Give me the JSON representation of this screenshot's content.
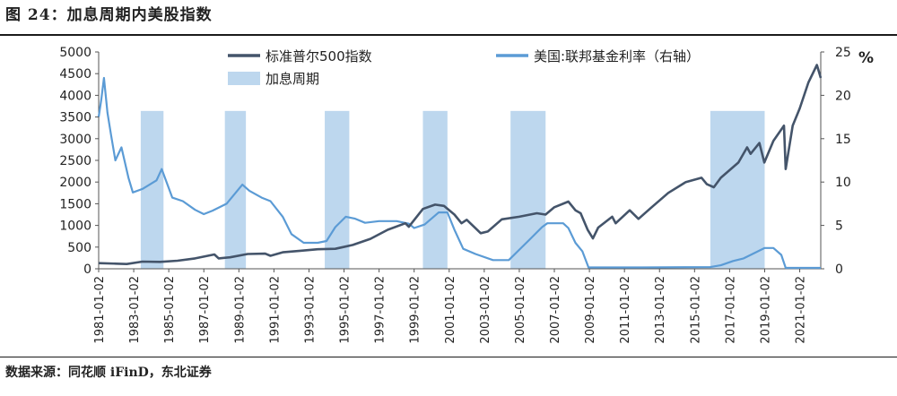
{
  "figure_title": "图 24：加息周期内美股指数",
  "source_note": "数据来源：同花顺 iFinD，东北证券",
  "colors": {
    "sp500": "#44546a",
    "fedfunds": "#5b9bd5",
    "hiking": "#bdd7ee"
  },
  "chart_data": {
    "type": "line",
    "x_tick_labels": [
      "1981-01-02",
      "1983-01-02",
      "1985-01-02",
      "1987-01-02",
      "1989-01-02",
      "1991-01-02",
      "1993-01-02",
      "1995-01-02",
      "1997-01-02",
      "1999-01-02",
      "2001-01-02",
      "2003-01-02",
      "2005-01-02",
      "2007-01-02",
      "2009-01-02",
      "2011-01-02",
      "2013-01-02",
      "2015-01-02",
      "2017-01-02",
      "2019-01-02",
      "2021-01-02"
    ],
    "x_range": [
      1981.0,
      2022.2
    ],
    "y_left": {
      "range": [
        0,
        5000
      ],
      "ticks": [
        "0",
        "500",
        "1000",
        "1500",
        "2000",
        "2500",
        "3000",
        "3500",
        "4000",
        "4500",
        "5000"
      ]
    },
    "y_right": {
      "range": [
        0,
        25
      ],
      "ticks": [
        "0",
        "5",
        "10",
        "15",
        "20",
        "25"
      ],
      "unit": "%"
    },
    "legend": {
      "sp500": "标准普尔500指数",
      "fedfunds": "美国:联邦基金利率（右轴）",
      "hiking": "加息周期"
    },
    "hiking_periods": [
      [
        1983.4,
        1984.7
      ],
      [
        1988.2,
        1989.4
      ],
      [
        1993.9,
        1995.3
      ],
      [
        1999.5,
        2000.9
      ],
      [
        2004.5,
        2006.5
      ],
      [
        2015.9,
        2019.0
      ]
    ],
    "sp500": {
      "x": [
        1981.0,
        1982.0,
        1982.6,
        1983.5,
        1984.5,
        1985.5,
        1986.5,
        1987.6,
        1987.85,
        1988.5,
        1989.5,
        1990.5,
        1990.8,
        1991.5,
        1992.5,
        1993.5,
        1994.5,
        1995.5,
        1996.5,
        1997.5,
        1998.5,
        1998.7,
        1999.5,
        2000.2,
        2000.7,
        2001.3,
        2001.7,
        2002.0,
        2002.8,
        2003.2,
        2004.0,
        2005.0,
        2006.0,
        2006.5,
        2007.0,
        2007.8,
        2008.2,
        2008.5,
        2008.9,
        2009.2,
        2009.5,
        2010.3,
        2010.5,
        2011.3,
        2011.8,
        2012.5,
        2013.5,
        2014.5,
        2015.4,
        2015.7,
        2016.1,
        2016.5,
        2017.5,
        2018.0,
        2018.2,
        2018.7,
        2018.98,
        2019.5,
        2020.1,
        2020.2,
        2020.6,
        2021.0,
        2021.5,
        2021.98,
        2022.2
      ],
      "y": [
        130,
        118,
        110,
        165,
        160,
        185,
        240,
        330,
        240,
        265,
        340,
        350,
        300,
        380,
        415,
        450,
        460,
        550,
        690,
        900,
        1050,
        970,
        1380,
        1480,
        1450,
        1250,
        1050,
        1130,
        820,
        860,
        1140,
        1200,
        1280,
        1250,
        1420,
        1550,
        1350,
        1280,
        900,
        700,
        950,
        1200,
        1050,
        1350,
        1150,
        1400,
        1750,
        2000,
        2100,
        1950,
        1880,
        2100,
        2450,
        2800,
        2650,
        2900,
        2450,
        2950,
        3300,
        2300,
        3300,
        3700,
        4300,
        4700,
        4400
      ]
    },
    "fedfunds": {
      "x": [
        1981.0,
        1981.15,
        1981.3,
        1981.5,
        1981.7,
        1981.95,
        1982.3,
        1982.7,
        1982.95,
        1983.5,
        1984.3,
        1984.6,
        1985.2,
        1985.8,
        1986.5,
        1987.0,
        1987.5,
        1988.3,
        1989.2,
        1989.6,
        1990.3,
        1990.8,
        1991.5,
        1992.0,
        1992.7,
        1993.5,
        1994.0,
        1994.5,
        1995.1,
        1995.6,
        1996.2,
        1997.0,
        1998.0,
        1998.7,
        1999.0,
        1999.6,
        2000.4,
        2000.9,
        2001.3,
        2001.8,
        2002.5,
        2003.5,
        2004.4,
        2004.9,
        2005.6,
        2006.3,
        2006.6,
        2007.5,
        2007.8,
        2008.2,
        2008.6,
        2008.95,
        2009.5,
        2012.0,
        2015.9,
        2016.5,
        2017.2,
        2017.8,
        2018.5,
        2019.0,
        2019.5,
        2019.95,
        2020.2,
        2021.0,
        2022.2
      ],
      "y": [
        17.5,
        19.5,
        22.0,
        18.0,
        15.5,
        12.5,
        14.0,
        10.5,
        8.8,
        9.2,
        10.2,
        11.5,
        8.2,
        7.8,
        6.8,
        6.3,
        6.7,
        7.5,
        9.7,
        9.0,
        8.2,
        7.8,
        6.0,
        4.0,
        3.0,
        3.0,
        3.2,
        4.8,
        6.0,
        5.8,
        5.3,
        5.5,
        5.5,
        5.2,
        4.7,
        5.1,
        6.5,
        6.5,
        4.5,
        2.3,
        1.7,
        1.0,
        1.0,
        2.0,
        3.4,
        4.8,
        5.25,
        5.25,
        4.7,
        3.0,
        2.0,
        0.15,
        0.15,
        0.15,
        0.2,
        0.4,
        0.9,
        1.2,
        1.9,
        2.4,
        2.4,
        1.6,
        0.1,
        0.1,
        0.1
      ]
    }
  }
}
